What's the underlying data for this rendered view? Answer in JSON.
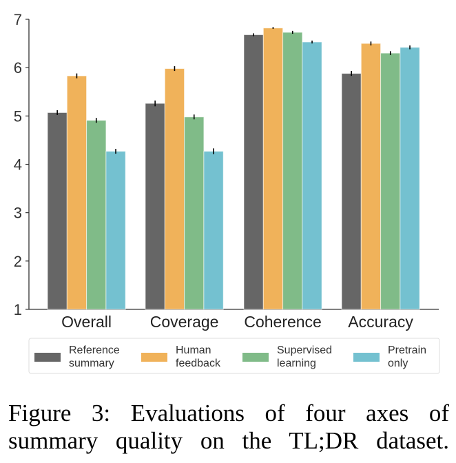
{
  "chart_data": {
    "type": "bar",
    "categories": [
      "Overall",
      "Coverage",
      "Coherence",
      "Accuracy"
    ],
    "series": [
      {
        "name": "Reference summary",
        "legend_lines": [
          "Reference",
          "summary"
        ],
        "color": "#666666",
        "values": [
          5.07,
          5.26,
          6.68,
          5.88
        ],
        "error": [
          0.05,
          0.06,
          0.03,
          0.05
        ]
      },
      {
        "name": "Human feedback",
        "legend_lines": [
          "Human",
          "feedback"
        ],
        "color": "#F0B25A",
        "values": [
          5.83,
          5.98,
          6.82,
          6.5
        ],
        "error": [
          0.05,
          0.05,
          0.02,
          0.04
        ]
      },
      {
        "name": "Supervised learning",
        "legend_lines": [
          "Supervised",
          "learning"
        ],
        "color": "#80BB88",
        "values": [
          4.91,
          4.98,
          6.73,
          6.3
        ],
        "error": [
          0.05,
          0.05,
          0.03,
          0.04
        ]
      },
      {
        "name": "Pretrain only",
        "legend_lines": [
          "Pretrain",
          "only"
        ],
        "color": "#74C1D0",
        "values": [
          4.27,
          4.27,
          6.53,
          6.42
        ],
        "error": [
          0.05,
          0.06,
          0.03,
          0.04
        ]
      }
    ],
    "yticks": [
      1,
      2,
      3,
      4,
      5,
      6,
      7
    ],
    "ylim": [
      1,
      7
    ],
    "xlabel": "",
    "ylabel": "",
    "grid": false,
    "legend": "bottom"
  },
  "caption": {
    "line1": "Figure 3:  Evaluations of four axes of",
    "line2": "summary quality on the TL;DR dataset."
  }
}
